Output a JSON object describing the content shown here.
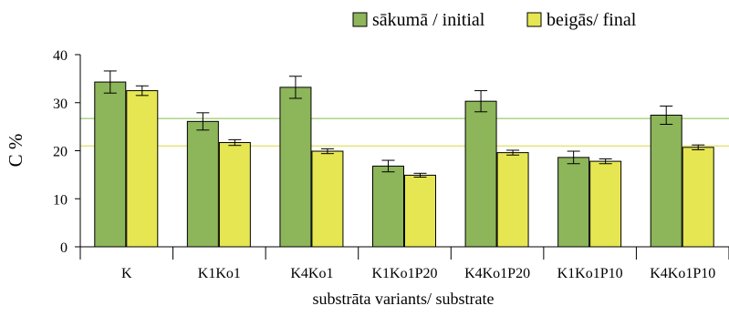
{
  "chart_data": {
    "type": "bar",
    "categories": [
      "K",
      "K1Ko1",
      "K4Ko1",
      "K1Ko1P20",
      "K4Ko1P20",
      "K1Ko1P10",
      "K4Ko1P10"
    ],
    "series": [
      {
        "name": "sākumā / initial",
        "color": "#8db55a",
        "values": [
          34.3,
          26.1,
          33.2,
          16.8,
          30.3,
          18.6,
          27.4
        ],
        "errors": [
          2.3,
          1.8,
          2.3,
          1.2,
          2.2,
          1.3,
          1.9
        ]
      },
      {
        "name": "beigās/ final",
        "color": "#e6e652",
        "values": [
          32.5,
          21.7,
          19.9,
          14.9,
          19.6,
          17.8,
          20.7
        ],
        "errors": [
          1.0,
          0.6,
          0.5,
          0.4,
          0.5,
          0.5,
          0.5
        ]
      }
    ],
    "reference_lines": [
      {
        "value": 26.7,
        "color": "#9ccc6a"
      },
      {
        "value": 21.0,
        "color": "#e0e060"
      }
    ],
    "title": "",
    "xlabel": "substrāta variants/ substrate",
    "ylabel": "C %",
    "ylim": [
      0,
      40
    ],
    "yticks": [
      0,
      10,
      20,
      30,
      40
    ],
    "grid": false,
    "legend_position": "top-right"
  }
}
